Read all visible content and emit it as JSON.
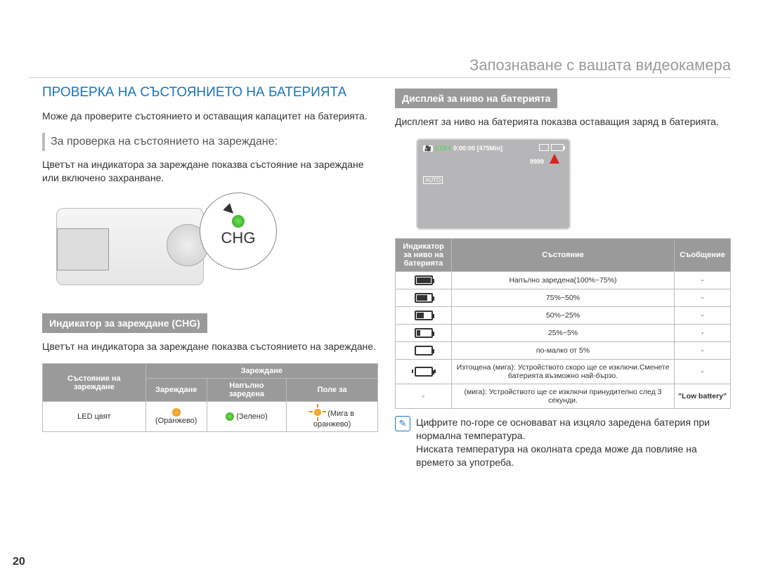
{
  "header": {
    "chapter": "Запознаване с вашата видеокамера"
  },
  "page_number": "20",
  "colors": {
    "accent_blue": "#1a75bc",
    "grey_band": "#9a9a9a",
    "text": "#333333",
    "light_text": "#9a9a9a",
    "led_green": "#2f9e1b",
    "led_orange": "#e88a00",
    "lcd_bg": "#b6b6b8",
    "pointer_red": "#e02020"
  },
  "left": {
    "title": "ПРОВЕРКА НА СЪСТОЯНИЕТО НА БАТЕРИЯТА",
    "intro": "Може да проверите състоянието и оставащия капацитет на батерията.",
    "sub1": "За проверка на състоянието на зареждане:",
    "sub1_text": "Цветът на индикатора за зареждане показва състояние на зареждане или включено захранване.",
    "chg_label": "CHG",
    "band1": "Индикатор за зареждане (CHG)",
    "band1_text": "Цветът на индикатора за зареждане показва състоянието на зареждане.",
    "table1": {
      "h_state": "Състояние на зареждане",
      "h_charging_group": "Зареждане",
      "h_charging": "Зареждане",
      "h_full": "Напълно заредена",
      "h_error": "Поле за",
      "row_label": "LED цвят",
      "c1": "(Оранжево)",
      "c2": "(Зелено)",
      "c3": "(Мига в оранжево)"
    }
  },
  "right": {
    "band2": "Дисплей за ниво на батерията",
    "band2_text": "Дисплеят за ниво на батерията показва оставащия заряд в батерията.",
    "lcd": {
      "stby": "STBY",
      "time": "0:00:00",
      "remain": "[475Min]",
      "shots": "9999",
      "auto": "AUTO"
    },
    "table2": {
      "h_icon": "Индикатор за ниво на батерията",
      "h_state": "Състояние",
      "h_msg": "Съобщение",
      "rows": [
        {
          "level": 4,
          "state": "Напълно заредена(100%~75%)",
          "msg": "-"
        },
        {
          "level": 3,
          "state": "75%~50%",
          "msg": "-"
        },
        {
          "level": 2,
          "state": "50%~25%",
          "msg": "-"
        },
        {
          "level": 1,
          "state": "25%~5%",
          "msg": "-"
        },
        {
          "level": 0,
          "state": "по-малко от 5%",
          "msg": "-"
        },
        {
          "level": "blink",
          "state": "Изтощена (мига): Устройството скоро ще се изключи.Сменете батерията възможно най-бързо.",
          "msg": "-"
        },
        {
          "level": "-",
          "state": "(мига): Устройството ще се изключи принудително след 3 секунди.",
          "msg": "\"Low battery\""
        }
      ]
    },
    "note": "Цифрите по-горе се основават на изцяло заредена батерия при нормална температура.\nНиската температура на околната среда може да повлияе на времето за употреба."
  }
}
